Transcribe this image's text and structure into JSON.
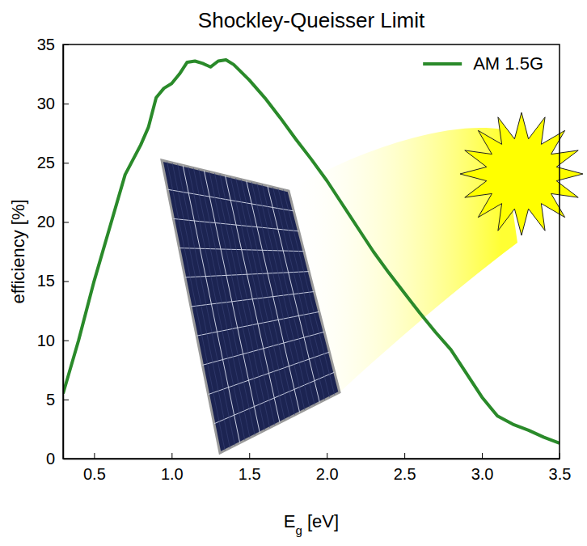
{
  "chart_data": {
    "type": "line",
    "title": "Shockley-Queisser Limit",
    "x_label": "Eg [eV]",
    "y_label": "efficiency [%]",
    "x": [
      0.3,
      0.4,
      0.5,
      0.6,
      0.7,
      0.8,
      0.85,
      0.9,
      0.95,
      1.0,
      1.05,
      1.1,
      1.15,
      1.2,
      1.25,
      1.3,
      1.35,
      1.4,
      1.5,
      1.6,
      1.7,
      1.8,
      1.9,
      2.0,
      2.1,
      2.2,
      2.3,
      2.4,
      2.5,
      2.6,
      2.7,
      2.8,
      2.9,
      3.0,
      3.1,
      3.2,
      3.3,
      3.4,
      3.5
    ],
    "series": [
      {
        "name": "AM 1.5G",
        "color": "#2a8a2a",
        "values": [
          5.5,
          10,
          15,
          19.5,
          24,
          26.5,
          28,
          30.5,
          31.3,
          31.7,
          32.5,
          33.5,
          33.6,
          33.4,
          33.1,
          33.6,
          33.7,
          33.3,
          32.0,
          30.5,
          28.8,
          27.0,
          25.3,
          23.5,
          21.5,
          19.5,
          17.5,
          15.7,
          14.0,
          12.3,
          10.7,
          9.2,
          7.2,
          5.2,
          3.6,
          2.9,
          2.4,
          1.8,
          1.3
        ]
      }
    ],
    "xlim": [
      0.3,
      3.5
    ],
    "xticks": [
      0.5,
      {
        "value": 1,
        "label": "1.0"
      },
      1.5,
      {
        "value": 2,
        "label": "2.0"
      },
      2.5,
      {
        "value": 3,
        "label": "3.0"
      },
      3.5
    ],
    "ylim": [
      0,
      35
    ],
    "yticks": [
      0,
      5,
      10,
      15,
      20,
      25,
      30,
      35
    ],
    "grid": false,
    "legend": "upper right"
  }
}
